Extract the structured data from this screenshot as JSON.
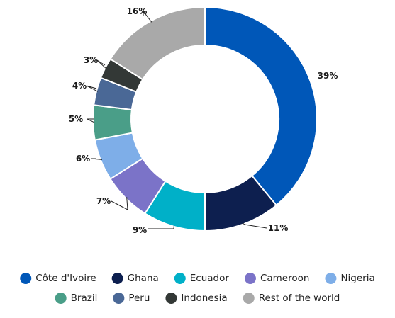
{
  "chart_data": {
    "type": "pie",
    "donut": true,
    "legend_position": "bottom",
    "title": "",
    "series": [
      {
        "name": "Côte d'Ivoire",
        "value": 39,
        "label": "39%",
        "color": "#0057b8"
      },
      {
        "name": "Ghana",
        "value": 11,
        "label": "11%",
        "color": "#0d1f4f"
      },
      {
        "name": "Ecuador",
        "value": 9,
        "label": "9%",
        "color": "#00b0c8"
      },
      {
        "name": "Cameroon",
        "value": 7,
        "label": "7%",
        "color": "#7b73c8"
      },
      {
        "name": "Nigeria",
        "value": 6,
        "label": "6%",
        "color": "#7eaee8"
      },
      {
        "name": "Brazil",
        "value": 5,
        "label": "5%",
        "color": "#4a9e88"
      },
      {
        "name": "Peru",
        "value": 4,
        "label": "4%",
        "color": "#4a6896"
      },
      {
        "name": "Indonesia",
        "value": 3,
        "label": "3%",
        "color": "#333836"
      },
      {
        "name": "Rest of the world",
        "value": 16,
        "label": "16%",
        "color": "#a9a9a9"
      }
    ]
  }
}
